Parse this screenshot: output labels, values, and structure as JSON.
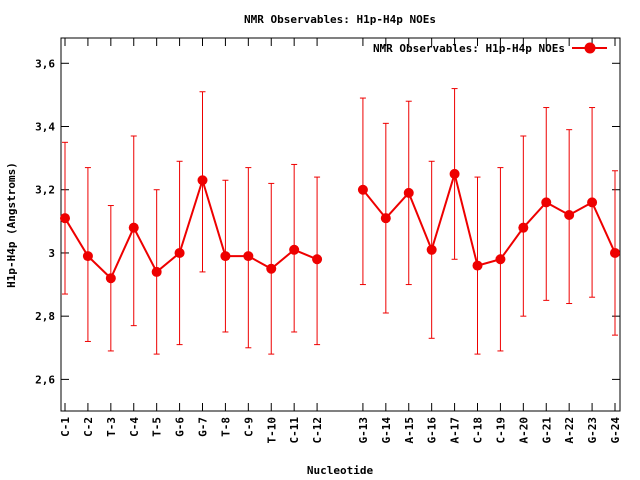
{
  "chart_data": {
    "type": "line",
    "title": "NMR Observables: H1p-H4p NOEs",
    "xlabel": "Nucleotide",
    "ylabel": "H1p-H4p (Angstroms)",
    "ylim": [
      2.5,
      3.68
    ],
    "yticks": [
      2.6,
      2.8,
      3,
      3.2,
      3.4,
      3.6
    ],
    "ytick_labels": [
      "2,6",
      "2,8",
      "3",
      "3,2",
      "3,4",
      "3,6"
    ],
    "grid": false,
    "legend_position": "top-right",
    "series": [
      {
        "name": "NMR Observables: H1p-H4p NOEs",
        "color": "#ee0000",
        "categories": [
          "C-1",
          "C-2",
          "T-3",
          "C-4",
          "T-5",
          "G-6",
          "G-7",
          "T-8",
          "C-9",
          "T-10",
          "C-11",
          "C-12",
          "",
          "G-13",
          "G-14",
          "A-15",
          "G-16",
          "A-17",
          "C-18",
          "C-19",
          "A-20",
          "G-21",
          "A-22",
          "G-23",
          "G-24"
        ],
        "values": [
          3.11,
          2.99,
          2.92,
          3.08,
          2.94,
          3.0,
          3.23,
          2.99,
          2.99,
          2.95,
          3.01,
          2.98,
          null,
          3.2,
          3.11,
          3.19,
          3.01,
          3.25,
          2.96,
          2.98,
          3.08,
          3.16,
          3.12,
          3.16,
          3.0
        ],
        "error_low": [
          2.87,
          2.72,
          2.69,
          2.77,
          2.68,
          2.71,
          2.94,
          2.75,
          2.7,
          2.68,
          2.75,
          2.71,
          null,
          2.9,
          2.81,
          2.9,
          2.73,
          2.98,
          2.68,
          2.69,
          2.8,
          2.85,
          2.84,
          2.86,
          2.74
        ],
        "error_high": [
          3.35,
          3.27,
          3.15,
          3.37,
          3.2,
          3.29,
          3.51,
          3.23,
          3.27,
          3.22,
          3.28,
          3.24,
          null,
          3.49,
          3.41,
          3.48,
          3.29,
          3.52,
          3.24,
          3.27,
          3.37,
          3.46,
          3.39,
          3.46,
          3.26
        ]
      }
    ]
  }
}
